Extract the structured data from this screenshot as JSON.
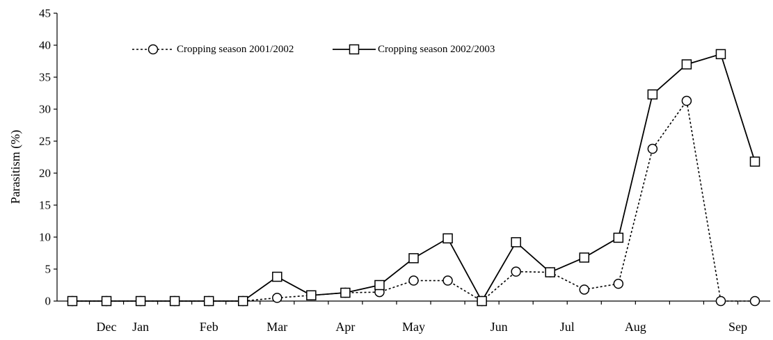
{
  "chart_data": {
    "type": "line",
    "title": "",
    "xlabel": "",
    "ylabel": "Parasitism (%)",
    "ylim": [
      0,
      45
    ],
    "yticks": [
      0,
      5,
      10,
      15,
      20,
      25,
      30,
      35,
      40,
      45
    ],
    "grid": false,
    "legend_position": "top-left",
    "x": [
      1,
      2,
      3,
      4,
      5,
      6,
      7,
      8,
      9,
      10,
      11,
      12,
      13,
      14,
      15,
      16,
      17,
      18,
      19,
      20,
      21
    ],
    "month_labels": [
      {
        "label": "Dec",
        "x": 2
      },
      {
        "label": "Jan",
        "x": 3
      },
      {
        "label": "Feb",
        "x": 5
      },
      {
        "label": "Mar",
        "x": 7
      },
      {
        "label": "Apr",
        "x": 9
      },
      {
        "label": "May",
        "x": 11
      },
      {
        "label": "Jun",
        "x": 13.5
      },
      {
        "label": "Jul",
        "x": 15.5
      },
      {
        "label": "Aug",
        "x": 17.5
      },
      {
        "label": "Sep",
        "x": 20.5
      }
    ],
    "series": [
      {
        "name": "Cropping season 2001/2002",
        "marker": "circle",
        "line_style": "dotted",
        "color": "#000000",
        "values": [
          0,
          0,
          0,
          0,
          0,
          0,
          0.5,
          0.9,
          1.3,
          1.4,
          3.2,
          3.2,
          0,
          4.6,
          4.5,
          1.8,
          2.7,
          23.8,
          31.3,
          0,
          0
        ]
      },
      {
        "name": "Cropping season 2002/2003",
        "marker": "square",
        "line_style": "solid",
        "color": "#000000",
        "values": [
          0,
          0,
          0,
          0,
          0,
          0,
          3.8,
          0.9,
          1.3,
          2.5,
          6.7,
          9.8,
          0,
          9.2,
          4.5,
          6.8,
          9.9,
          32.3,
          37.0,
          38.6,
          21.8
        ]
      }
    ]
  }
}
